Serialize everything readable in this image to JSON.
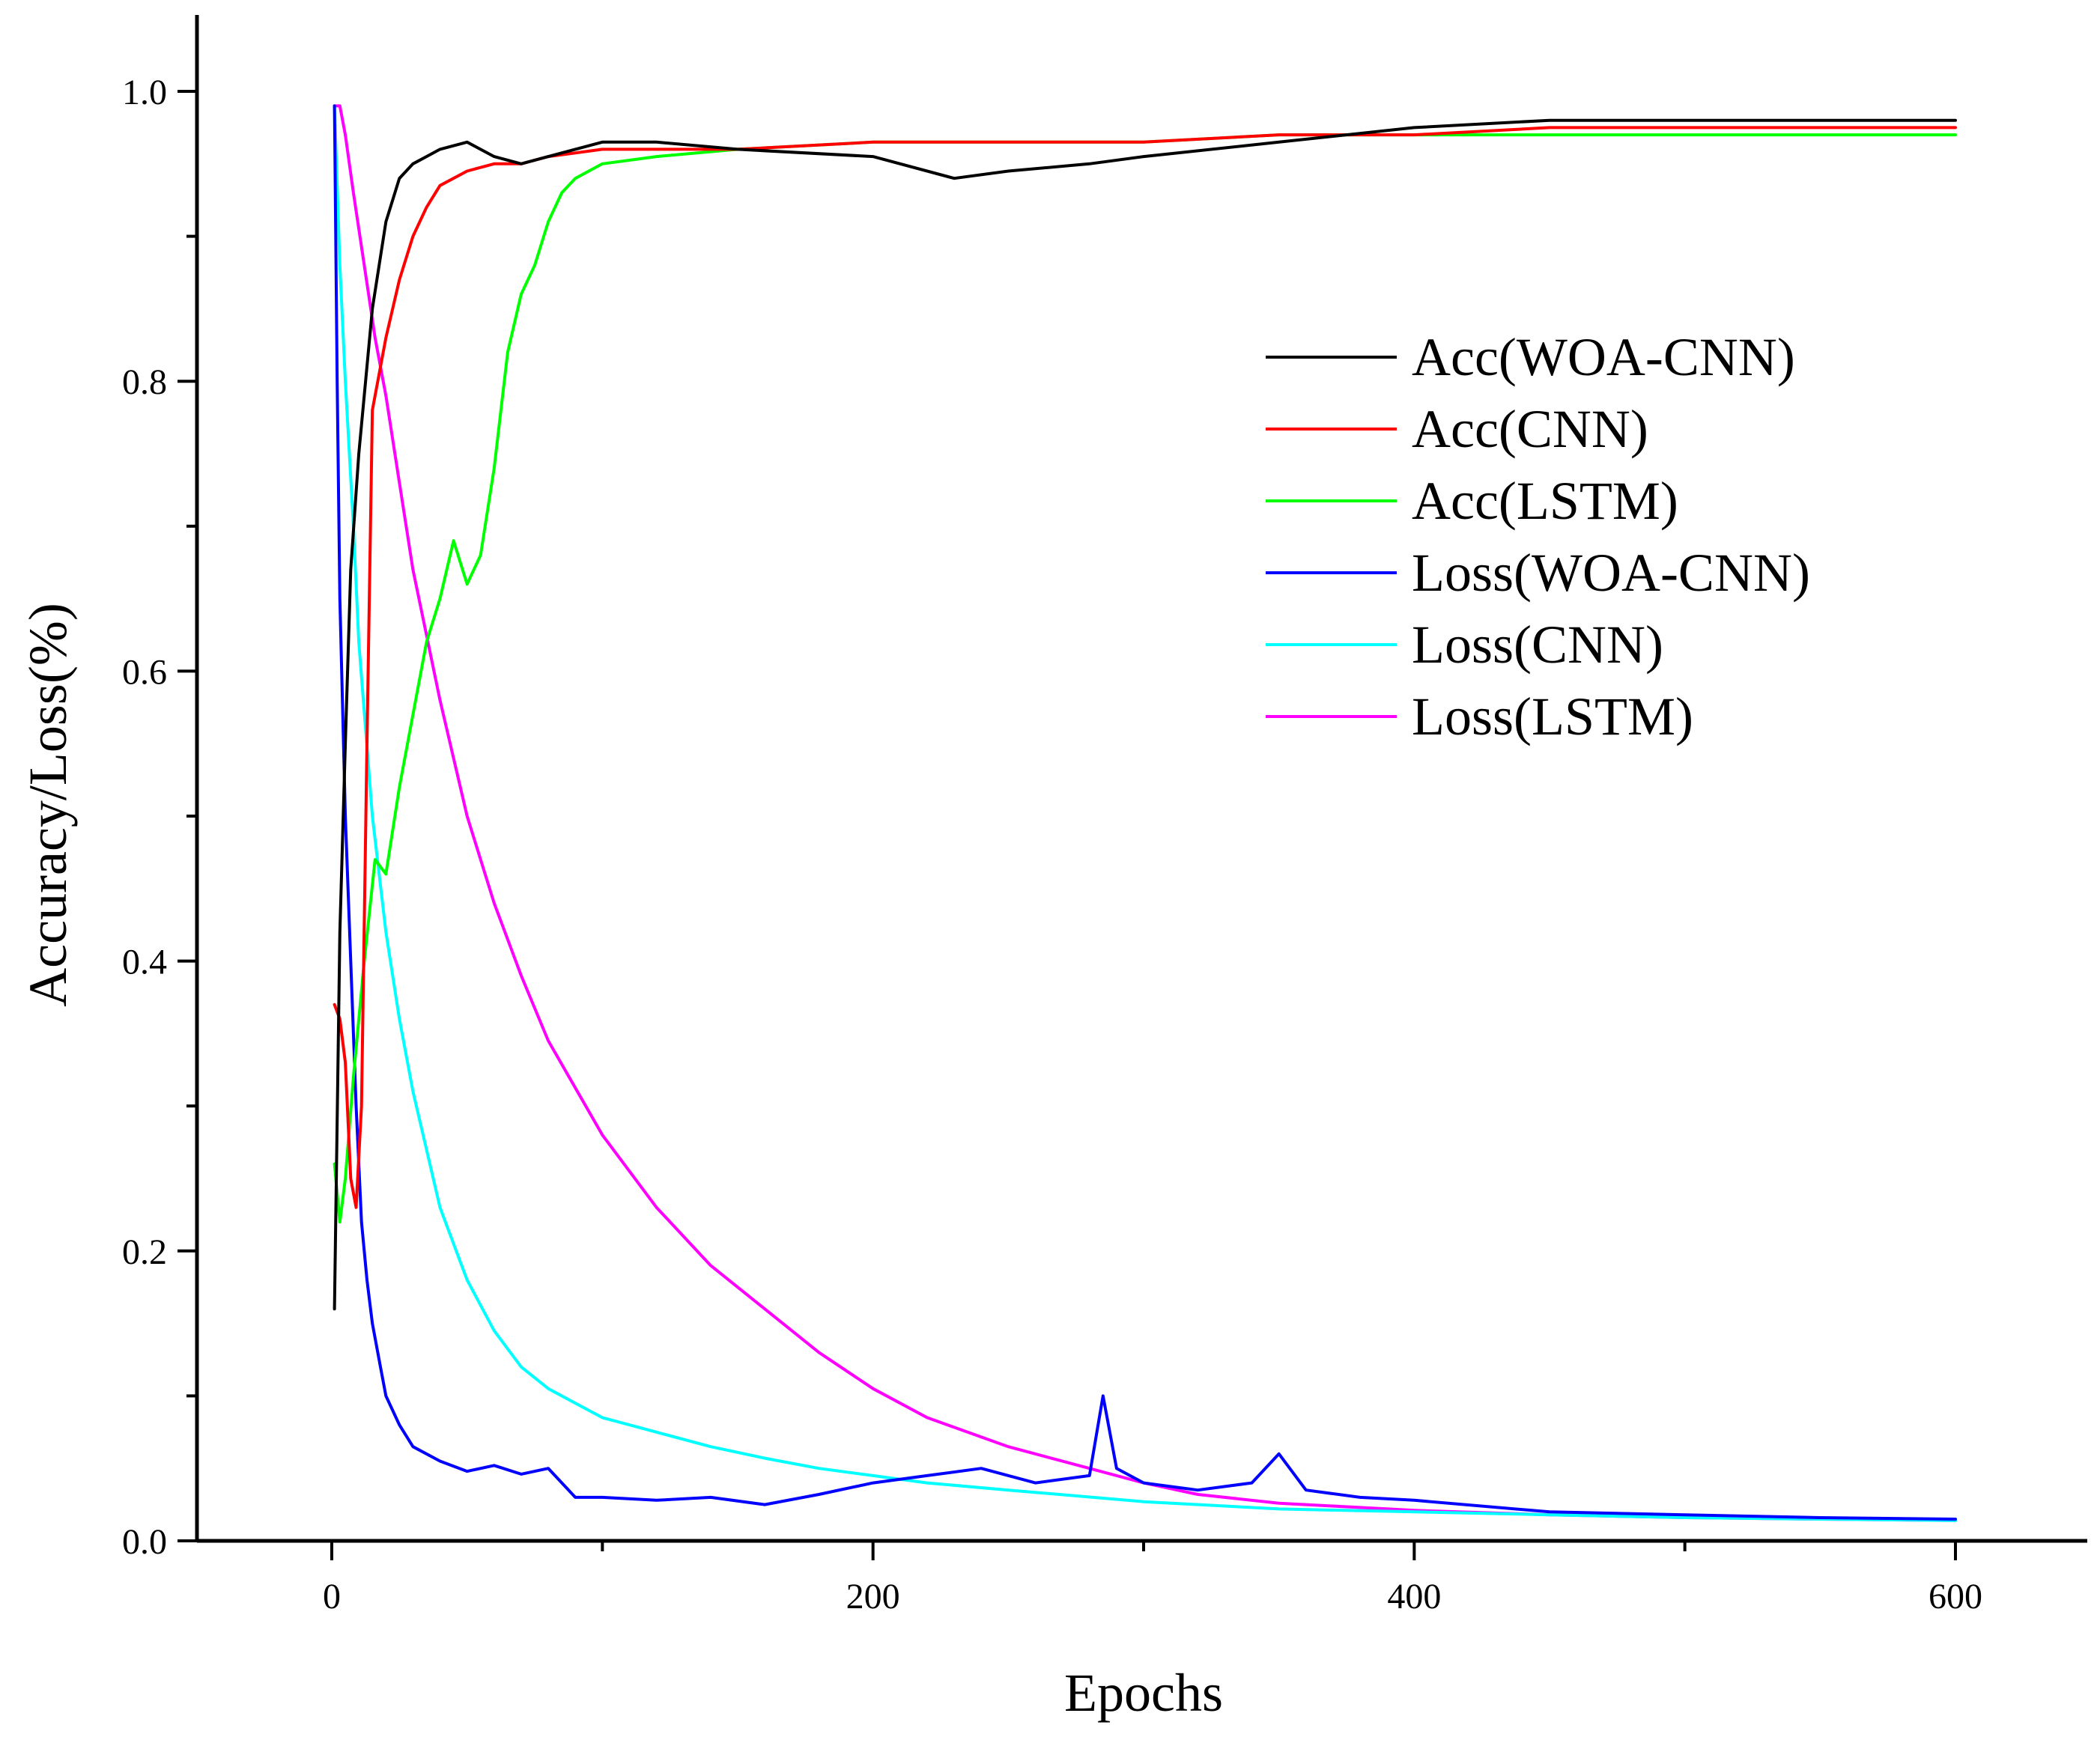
{
  "chart_data": {
    "type": "line",
    "title": "",
    "xlabel": "Epochs",
    "ylabel": "Accuracy/Loss(%)",
    "xlim": [
      -50,
      650
    ],
    "ylim": [
      0.0,
      1.05
    ],
    "x_ticks": [
      0,
      200,
      400,
      600
    ],
    "x_tick_labels": [
      "0",
      "200",
      "400",
      "600"
    ],
    "y_ticks": [
      0.0,
      0.2,
      0.4,
      0.6,
      0.8,
      1.0
    ],
    "y_tick_labels": [
      "0.0",
      "0.2",
      "0.4",
      "0.6",
      "0.8",
      "1.0"
    ],
    "grid": false,
    "legend_position": "top-right",
    "series": [
      {
        "name": "Acc(WOA-CNN)",
        "color": "#000000",
        "x": [
          1,
          3,
          5,
          7,
          10,
          15,
          20,
          25,
          30,
          35,
          40,
          50,
          60,
          70,
          80,
          90,
          100,
          120,
          150,
          200,
          230,
          250,
          280,
          300,
          350,
          400,
          450,
          500,
          550,
          600
        ],
        "y": [
          0.16,
          0.42,
          0.55,
          0.67,
          0.75,
          0.85,
          0.91,
          0.94,
          0.95,
          0.955,
          0.96,
          0.965,
          0.955,
          0.95,
          0.955,
          0.96,
          0.965,
          0.965,
          0.96,
          0.955,
          0.94,
          0.945,
          0.95,
          0.955,
          0.965,
          0.975,
          0.98,
          0.98,
          0.98,
          0.98
        ]
      },
      {
        "name": "Acc(CNN)",
        "color": "#ff0000",
        "x": [
          1,
          3,
          5,
          7,
          9,
          11,
          13,
          15,
          20,
          25,
          30,
          35,
          40,
          50,
          60,
          70,
          80,
          100,
          150,
          200,
          250,
          300,
          350,
          400,
          450,
          500,
          550,
          600
        ],
        "y": [
          0.37,
          0.36,
          0.33,
          0.25,
          0.23,
          0.3,
          0.55,
          0.78,
          0.83,
          0.87,
          0.9,
          0.92,
          0.935,
          0.945,
          0.95,
          0.95,
          0.955,
          0.96,
          0.96,
          0.965,
          0.965,
          0.965,
          0.97,
          0.97,
          0.975,
          0.975,
          0.975,
          0.975
        ]
      },
      {
        "name": "Acc(LSTM)",
        "color": "#00ff00",
        "x": [
          1,
          3,
          5,
          8,
          12,
          16,
          20,
          25,
          30,
          35,
          40,
          45,
          50,
          55,
          60,
          65,
          70,
          75,
          80,
          85,
          90,
          100,
          120,
          150,
          200,
          250,
          300,
          350,
          400,
          450,
          500,
          550,
          600
        ],
        "y": [
          0.26,
          0.22,
          0.25,
          0.32,
          0.4,
          0.47,
          0.46,
          0.52,
          0.57,
          0.62,
          0.65,
          0.69,
          0.66,
          0.68,
          0.74,
          0.82,
          0.86,
          0.88,
          0.91,
          0.93,
          0.94,
          0.95,
          0.955,
          0.96,
          0.965,
          0.965,
          0.965,
          0.97,
          0.97,
          0.97,
          0.97,
          0.97,
          0.97
        ]
      },
      {
        "name": "Loss(WOA-CNN)",
        "color": "#0000ff",
        "x": [
          1,
          2,
          3,
          5,
          7,
          9,
          11,
          13,
          15,
          18,
          20,
          25,
          30,
          40,
          50,
          60,
          70,
          80,
          90,
          100,
          120,
          140,
          160,
          180,
          200,
          220,
          240,
          260,
          280,
          285,
          290,
          300,
          320,
          340,
          350,
          360,
          380,
          400,
          450,
          500,
          550,
          600
        ],
        "y": [
          0.99,
          0.8,
          0.65,
          0.5,
          0.4,
          0.3,
          0.22,
          0.18,
          0.15,
          0.12,
          0.1,
          0.08,
          0.065,
          0.055,
          0.048,
          0.052,
          0.046,
          0.05,
          0.03,
          0.03,
          0.028,
          0.03,
          0.025,
          0.032,
          0.04,
          0.045,
          0.05,
          0.04,
          0.045,
          0.1,
          0.05,
          0.04,
          0.035,
          0.04,
          0.06,
          0.035,
          0.03,
          0.028,
          0.02,
          0.018,
          0.016,
          0.015
        ]
      },
      {
        "name": "Loss(CNN)",
        "color": "#00ffff",
        "x": [
          1,
          3,
          5,
          8,
          10,
          15,
          20,
          25,
          30,
          35,
          40,
          50,
          60,
          70,
          80,
          90,
          100,
          120,
          140,
          160,
          180,
          200,
          220,
          250,
          300,
          350,
          400,
          450,
          500,
          550,
          600
        ],
        "y": [
          0.99,
          0.88,
          0.8,
          0.7,
          0.62,
          0.5,
          0.42,
          0.36,
          0.31,
          0.27,
          0.23,
          0.18,
          0.145,
          0.12,
          0.105,
          0.095,
          0.085,
          0.075,
          0.065,
          0.057,
          0.05,
          0.045,
          0.04,
          0.035,
          0.027,
          0.022,
          0.02,
          0.018,
          0.016,
          0.015,
          0.014
        ]
      },
      {
        "name": "Loss(LSTM)",
        "color": "#ff00ff",
        "x": [
          1,
          3,
          5,
          8,
          12,
          16,
          20,
          25,
          30,
          40,
          50,
          60,
          70,
          80,
          100,
          120,
          140,
          160,
          180,
          200,
          220,
          250,
          280,
          300,
          320,
          350,
          400,
          450,
          500,
          550,
          600
        ],
        "y": [
          0.99,
          0.99,
          0.97,
          0.93,
          0.88,
          0.83,
          0.79,
          0.73,
          0.67,
          0.58,
          0.5,
          0.44,
          0.39,
          0.345,
          0.28,
          0.23,
          0.19,
          0.16,
          0.13,
          0.105,
          0.085,
          0.065,
          0.05,
          0.04,
          0.032,
          0.026,
          0.021,
          0.018,
          0.016,
          0.015,
          0.014
        ]
      }
    ]
  }
}
